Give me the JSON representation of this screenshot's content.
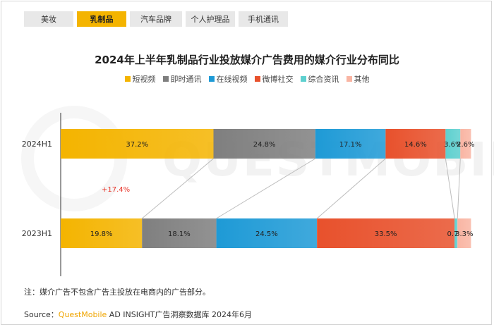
{
  "tabs": [
    {
      "label": "美妆",
      "active": false
    },
    {
      "label": "乳制品",
      "active": true
    },
    {
      "label": "汽车品牌",
      "active": false
    },
    {
      "label": "个人护理品",
      "active": false
    },
    {
      "label": "手机通讯",
      "active": false
    }
  ],
  "watermark": "QUESTMOBILE",
  "note": "注：媒介广告不包含广告主投放在电商内的广告部分。",
  "source": {
    "prefix": "Source：",
    "brand": "QuestMobile",
    "rest": " AD INSIGHT广告洞察数据库 2024年6月"
  },
  "colors": {
    "accent": "#f4b400",
    "growth_label": "#e8352a"
  },
  "chart_data": {
    "type": "bar",
    "orientation": "horizontal",
    "stacked": "100%",
    "title": "2024年上半年乳制品行业投放媒介广告费用的媒介行业分布同比",
    "categories": [
      "2024H1",
      "2023H1"
    ],
    "series": [
      {
        "name": "短视频",
        "color": "#f4b400",
        "values": [
          37.2,
          19.8
        ],
        "labels": [
          "37.2%",
          "19.8%"
        ]
      },
      {
        "name": "即时通讯",
        "color": "#7f7f7f",
        "values": [
          24.8,
          18.1
        ],
        "labels": [
          "24.8%",
          "18.1%"
        ]
      },
      {
        "name": "在线视频",
        "color": "#1e9ad6",
        "values": [
          17.1,
          24.5
        ],
        "labels": [
          "17.1%",
          "24.5%"
        ]
      },
      {
        "name": "微博社交",
        "color": "#e8512c",
        "values": [
          14.6,
          33.5
        ],
        "labels": [
          "14.6%",
          "33.5%"
        ]
      },
      {
        "name": "综合资讯",
        "color": "#5ed0cf",
        "values": [
          3.6,
          0.7
        ],
        "labels": [
          "3.6%",
          "0.7%"
        ]
      },
      {
        "name": "其他",
        "color": "#f9b5a3",
        "values": [
          2.6,
          3.3
        ],
        "labels": [
          "2.6%",
          "3.3%"
        ]
      }
    ],
    "annotations": [
      {
        "text": "+17.4%"
      }
    ],
    "legend_position": "top-center",
    "grid": false
  }
}
